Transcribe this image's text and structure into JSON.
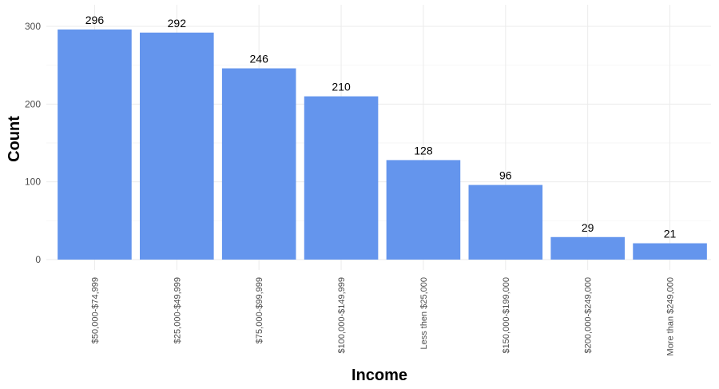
{
  "chart_data": {
    "type": "bar",
    "title": "",
    "xlabel": "Income",
    "ylabel": "Count",
    "categories": [
      "$50,000-$74,999",
      "$25,000-$49,999",
      "$75,000-$99,999",
      "$100,000-$149,999",
      "Less then $25,000",
      "$150,000-$199,000",
      "$200,000-$249,000",
      "More than $249,000"
    ],
    "values": [
      296,
      292,
      246,
      210,
      128,
      96,
      29,
      21
    ],
    "ylim": [
      0,
      300
    ],
    "yticks": [
      0,
      100,
      200,
      300
    ],
    "grid": true,
    "data_labels": true,
    "colors": {
      "bar": "#6495ED"
    }
  }
}
